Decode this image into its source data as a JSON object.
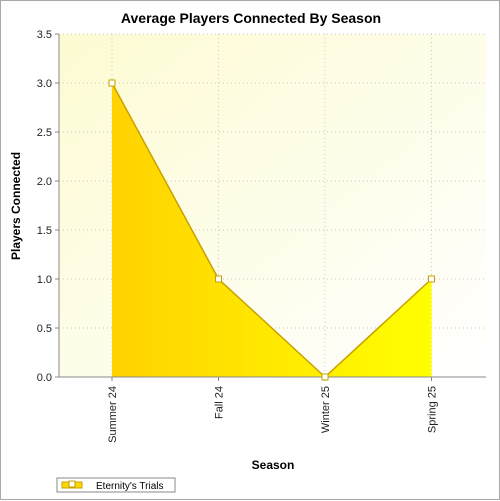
{
  "chart_data": {
    "type": "area",
    "title": "Average Players Connected By Season",
    "xlabel": "Season",
    "ylabel": "Players Connected",
    "categories": [
      "Summer 24",
      "Fall 24",
      "Winter 25",
      "Spring 25"
    ],
    "series": [
      {
        "name": "Eternity's Trials",
        "values": [
          3.0,
          1.0,
          0.0,
          1.0
        ],
        "color": "#ffd700",
        "line_color": "#c8a000"
      }
    ],
    "ylim": [
      0,
      3.5
    ],
    "yticks": [
      "0.0",
      "0.5",
      "1.0",
      "1.5",
      "2.0",
      "2.5",
      "3.0",
      "3.5"
    ],
    "grid": true,
    "legend_position": "bottom-left",
    "plot_background": "#fffde0"
  }
}
